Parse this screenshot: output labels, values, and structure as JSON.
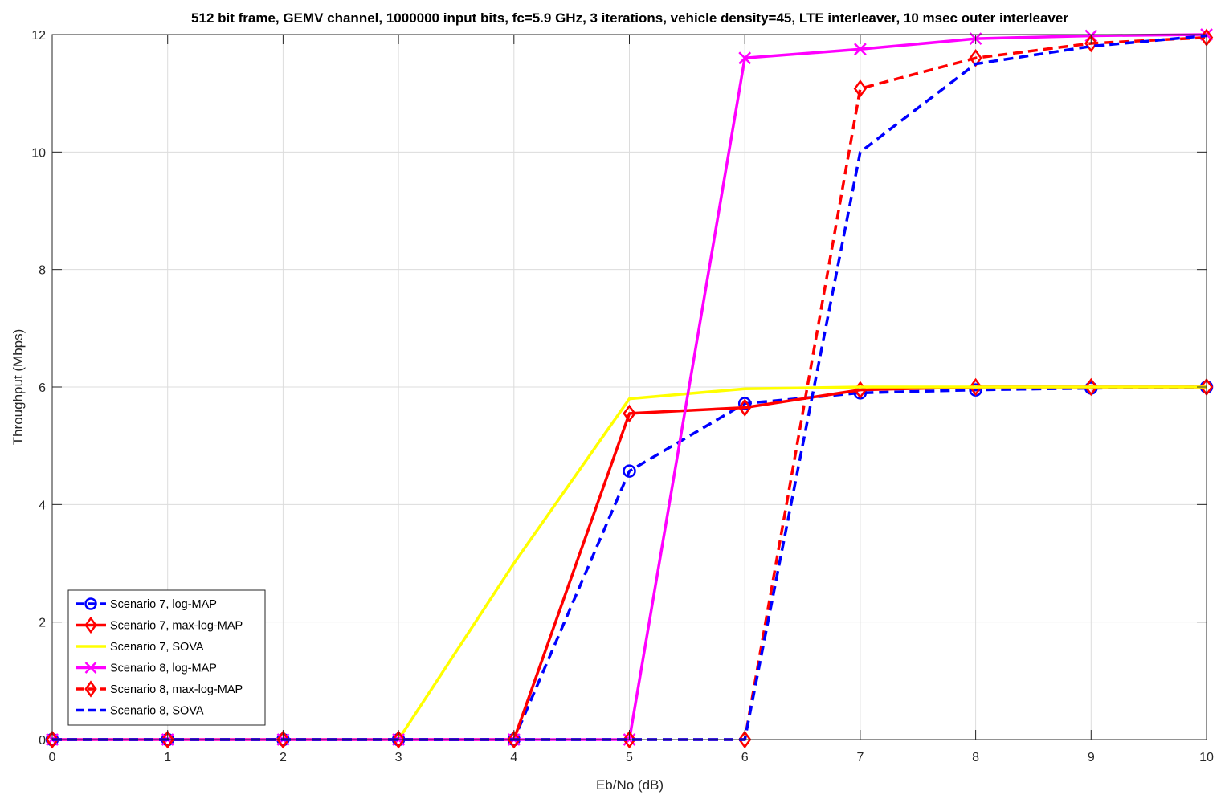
{
  "chart_data": {
    "type": "line",
    "title": "512 bit frame, GEMV channel, 1000000 input bits, fc=5.9 GHz, 3 iterations, vehicle density=45, LTE interleaver, 10 msec outer interleaver",
    "xlabel": "Eb/No (dB)",
    "ylabel": "Throughput (Mbps)",
    "xlim": [
      0,
      10
    ],
    "ylim": [
      0,
      12
    ],
    "xticks": [
      0,
      1,
      2,
      3,
      4,
      5,
      6,
      7,
      8,
      9,
      10
    ],
    "yticks": [
      0,
      2,
      4,
      6,
      8,
      10,
      12
    ],
    "grid": true,
    "legend_position": "bottom-left",
    "x": [
      0,
      1,
      2,
      3,
      4,
      5,
      6,
      7,
      8,
      9,
      10
    ],
    "series": [
      {
        "name": "Scenario 7, log-MAP",
        "color": "#0000ff",
        "dash": "dashed",
        "marker": "circle",
        "values": [
          0,
          0,
          0,
          0,
          0,
          4.57,
          5.72,
          5.9,
          5.95,
          5.98,
          6.0
        ]
      },
      {
        "name": "Scenario 7, max-log-MAP",
        "color": "#ff0000",
        "dash": "solid",
        "marker": "diamond",
        "values": [
          0,
          0,
          0,
          0,
          0,
          5.55,
          5.65,
          5.95,
          6.0,
          6.0,
          6.0
        ]
      },
      {
        "name": "Scenario 7, SOVA",
        "color": "#ffff00",
        "dash": "solid",
        "marker": "none",
        "values": [
          0,
          0,
          0,
          0,
          3.0,
          5.8,
          5.97,
          6.0,
          6.0,
          6.0,
          6.0
        ]
      },
      {
        "name": "Scenario 8, log-MAP",
        "color": "#ff00ff",
        "dash": "solid",
        "marker": "x",
        "values": [
          0,
          0,
          0,
          0,
          0,
          0,
          11.6,
          11.75,
          11.93,
          11.98,
          12.0
        ]
      },
      {
        "name": "Scenario 8, max-log-MAP",
        "color": "#ff0000",
        "dash": "dashed",
        "marker": "diamond",
        "values": [
          0,
          0,
          0,
          0,
          0,
          0,
          0,
          11.08,
          11.6,
          11.85,
          11.95
        ]
      },
      {
        "name": "Scenario 8, SOVA",
        "color": "#0000ff",
        "dash": "dashed",
        "marker": "none",
        "values": [
          0,
          0,
          0,
          0,
          0,
          0,
          0,
          10.0,
          11.5,
          11.8,
          11.98
        ]
      }
    ]
  }
}
